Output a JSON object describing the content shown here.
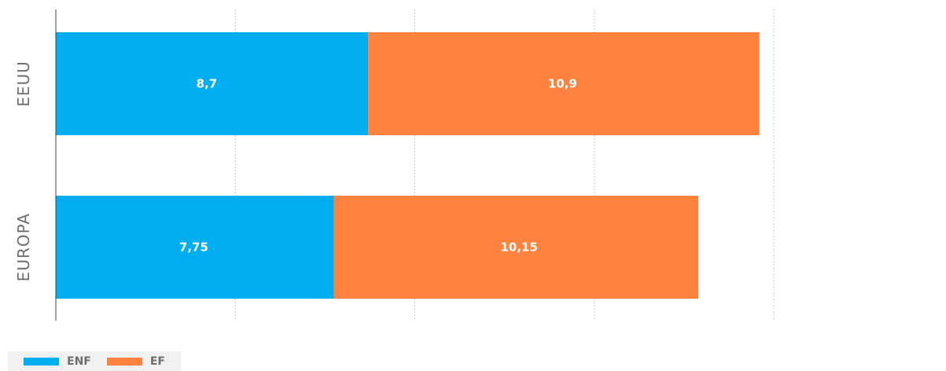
{
  "chart_data": {
    "type": "bar",
    "orientation": "horizontal",
    "stacked": true,
    "categories": [
      "EEUU",
      "EUROPA"
    ],
    "series": [
      {
        "name": "ENF",
        "values": [
          8.7,
          7.75
        ],
        "labels": [
          "8,7",
          "7,75"
        ],
        "color": "#00aeef"
      },
      {
        "name": "EF",
        "values": [
          10.9,
          10.15
        ],
        "labels": [
          "10,9",
          "10,15"
        ],
        "color": "#ff823f"
      }
    ],
    "xlim": [
      0,
      20
    ],
    "grid": true,
    "legend": "bottom-left"
  },
  "legend": {
    "items": [
      {
        "label": "ENF",
        "color": "#00aeef"
      },
      {
        "label": "EF",
        "color": "#ff823f"
      }
    ]
  }
}
